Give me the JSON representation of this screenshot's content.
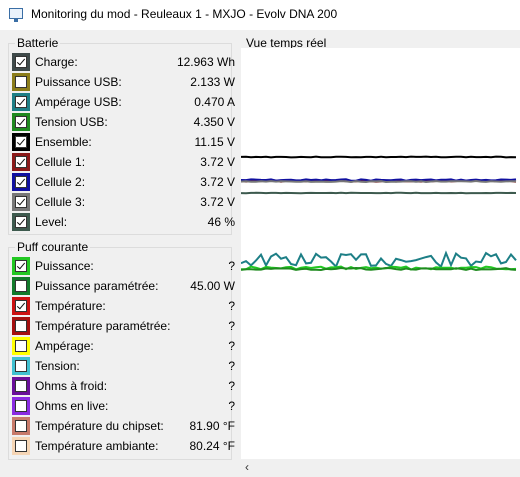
{
  "window": {
    "title": "Monitoring du mod - Reuleaux 1 - MXJO - Evolv DNA 200"
  },
  "battery": {
    "label": "Batterie",
    "items": [
      {
        "label": "Charge:",
        "value": "12.963 Wh",
        "color": "#3f4a4a",
        "checked": true
      },
      {
        "label": "Puissance USB:",
        "value": "2.133 W",
        "color": "#8b7d1a",
        "checked": false
      },
      {
        "label": "Ampérage USB:",
        "value": "0.470 A",
        "color": "#1d7f86",
        "checked": true
      },
      {
        "label": "Tension USB:",
        "value": "4.350 V",
        "color": "#1f8a1f",
        "checked": true
      },
      {
        "label": "Ensemble:",
        "value": "11.15 V",
        "color": "#000000",
        "checked": true
      },
      {
        "label": "Cellule 1:",
        "value": "3.72 V",
        "color": "#8b1a1a",
        "checked": true
      },
      {
        "label": "Cellule 2:",
        "value": "3.72 V",
        "color": "#1010a0",
        "checked": true
      },
      {
        "label": "Cellule 3:",
        "value": "3.72 V",
        "color": "#777777",
        "checked": true
      },
      {
        "label": "Level:",
        "value": "46 %",
        "color": "#3d5a4e",
        "checked": true
      }
    ]
  },
  "puff": {
    "label": "Puff courante",
    "items": [
      {
        "label": "Puissance:",
        "value": "?",
        "color": "#22c822",
        "checked": true
      },
      {
        "label": "Puissance paramétrée:",
        "value": "45.00 W",
        "color": "#127a2a",
        "checked": false
      },
      {
        "label": "Température:",
        "value": "?",
        "color": "#cc1111",
        "checked": true
      },
      {
        "label": "Température paramétrée:",
        "value": "?",
        "color": "#a51010",
        "checked": false
      },
      {
        "label": "Ampérage:",
        "value": "?",
        "color": "#ffff00",
        "checked": false
      },
      {
        "label": "Tension:",
        "value": "?",
        "color": "#40c0d0",
        "checked": false
      },
      {
        "label": "Ohms à froid:",
        "value": "?",
        "color": "#6a0f9a",
        "checked": false
      },
      {
        "label": "Ohms en live:",
        "value": "?",
        "color": "#8a2be2",
        "checked": false
      },
      {
        "label": "Température du chipset:",
        "value": "81.90 °F",
        "color": "#c87a6a",
        "checked": false
      },
      {
        "label": "Température ambiante:",
        "value": "80.24 °F",
        "color": "#f5d5b5",
        "checked": false
      }
    ]
  },
  "realtime": {
    "label": "Vue temps réel",
    "scroll_left_glyph": "‹"
  }
}
